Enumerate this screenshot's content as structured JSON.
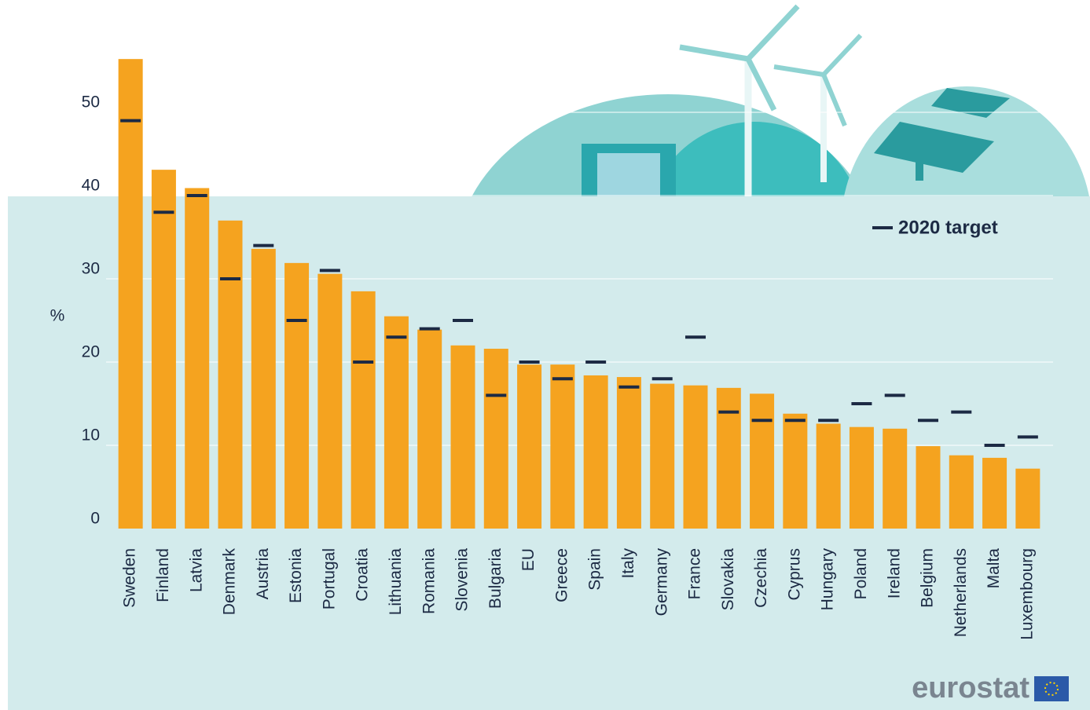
{
  "chart_data": {
    "type": "bar",
    "categories": [
      "Sweden",
      "Finland",
      "Latvia",
      "Denmark",
      "Austria",
      "Estonia",
      "Portugal",
      "Croatia",
      "Lithuania",
      "Romania",
      "Slovenia",
      "Bulgaria",
      "EU",
      "Greece",
      "Spain",
      "Italy",
      "Germany",
      "France",
      "Slovakia",
      "Czechia",
      "Cyprus",
      "Hungary",
      "Poland",
      "Ireland",
      "Belgium",
      "Netherlands",
      "Malta",
      "Luxembourg"
    ],
    "values": [
      56.4,
      43.1,
      40.9,
      37.0,
      33.6,
      31.9,
      30.6,
      28.5,
      25.5,
      23.9,
      22.0,
      21.6,
      19.7,
      19.7,
      18.4,
      18.2,
      17.4,
      17.2,
      16.9,
      16.2,
      13.8,
      12.6,
      12.2,
      12.0,
      9.9,
      8.8,
      8.5,
      7.2
    ],
    "color": "#f5a31f",
    "targets": {
      "name": "2020 target",
      "color": "#1c2a44",
      "values": [
        49,
        38,
        40,
        30,
        34,
        25,
        31,
        20,
        23,
        24,
        25,
        16,
        20,
        18,
        20,
        17,
        18,
        23,
        14,
        13,
        13,
        13,
        15,
        16,
        13,
        14,
        10,
        11
      ]
    },
    "y_label": "%",
    "ylim": [
      0,
      60
    ],
    "yticks": [
      0,
      10,
      20,
      30,
      40,
      50
    ],
    "grid": true,
    "legend": "top-right",
    "source_logo": "eurostat"
  }
}
